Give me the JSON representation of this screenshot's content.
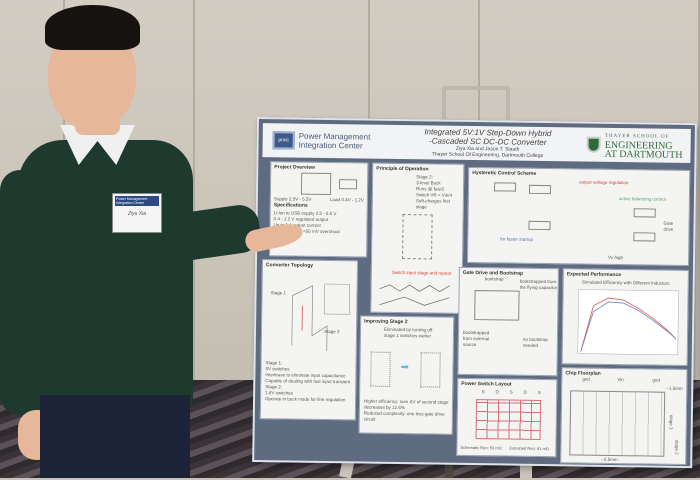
{
  "poster": {
    "org_logo_text": "pmic",
    "org_name": "Power Management Integration Center",
    "title_line1": "Integrated 5V:1V Step-Down Hybrid",
    "title_line2": "-Cascaded SC DC-DC Converter",
    "authors": "Ziyu Xia and Jason T. Stauth",
    "affiliation": "Thayer School Of Engineering, Dartmouth College",
    "school_small": "THAYER SCHOOL OF",
    "school_line1": "ENGINEERING",
    "school_line2": "AT DARTMOUTH",
    "sections": {
      "overview": {
        "title": "Project Overview",
        "supply": "Supply 2.5V - 5.5V",
        "load": "Load 0.4V - 1.2V",
        "spec_title": "Specifications",
        "specs": [
          "Li-ion to USB supply 2.5 - 5.5 V",
          "0.4 - 1.2 V regulated output",
          "Up to 1 A output current",
          "Fast transient: <50 mV overshoot"
        ]
      },
      "principle": {
        "title": "Principle of Operation",
        "stage": "Stage 2:",
        "bullets": [
          "3-level Buck",
          "Runs @ fsw/2",
          "Switch VR = Vin/4",
          "Soft-charges first stage"
        ],
        "note": "Switch input stage and repeat"
      },
      "hysteretic": {
        "title": "Hysteretic Control Scheme",
        "label_output": "output voltage regulation",
        "label_balance": "active balancing control",
        "label_startup": "for faster startup",
        "label_gate": "Gate drive",
        "label_vxhigh": "Vx high"
      },
      "topology": {
        "title": "Converter Topology",
        "stage1": "Stage 1",
        "stage2": "Stage 2",
        "s1_title": "Stage 1:",
        "s1": [
          "5V switches",
          "Interleave to eliminate input capacitance",
          "Capable of dealing with fast input transient"
        ],
        "s2_title": "Stage 2:",
        "s2": [
          "1.8V switches",
          "Operate in buck mode for fine regulation"
        ]
      },
      "improving": {
        "title": "Improving Stage 2",
        "note": "Eliminated by turning off stage 1 switches earlier",
        "bullets": [
          "Higher efficiency: sum ΔV of second stage decreases by 12.5%",
          "Reduced complexity: one less gate drive circuit"
        ]
      },
      "gate": {
        "title": "Gate Drive and Bootstrap",
        "bootstrap": "bootstrap",
        "note1": "bootstrapped from the flying capacitor",
        "note2": "bootstrapped from external source",
        "note3": "no bootstrap needed"
      },
      "layout": {
        "title": "Power Switch Layout",
        "cols": [
          "S",
          "D",
          "S",
          "D",
          "S"
        ],
        "schematic": "Schematic Ron: 53 mΩ",
        "extracted": "Extracted Ron: 61 mΩ"
      },
      "performance": {
        "title": "Expected Performance",
        "chart_title": "Simulated Efficiency with Different Inductors"
      },
      "floorplan": {
        "title": "Chip Floorplan",
        "gnd": "gnd",
        "vin": "Vin",
        "dim1": "~1.5mm",
        "dim2": "~2.5mm",
        "stage1": "stage 1",
        "stage2": "stage 2"
      }
    }
  },
  "badge": {
    "line1": "Power Management",
    "line2": "Integration Center",
    "name": "Ziyu Xia"
  },
  "colors": {
    "wall": "#c9c2b6",
    "sweater": "#1e3a2f",
    "poster_frame": "#5f6b80",
    "dartmouth_green": "#2f6b3a"
  }
}
